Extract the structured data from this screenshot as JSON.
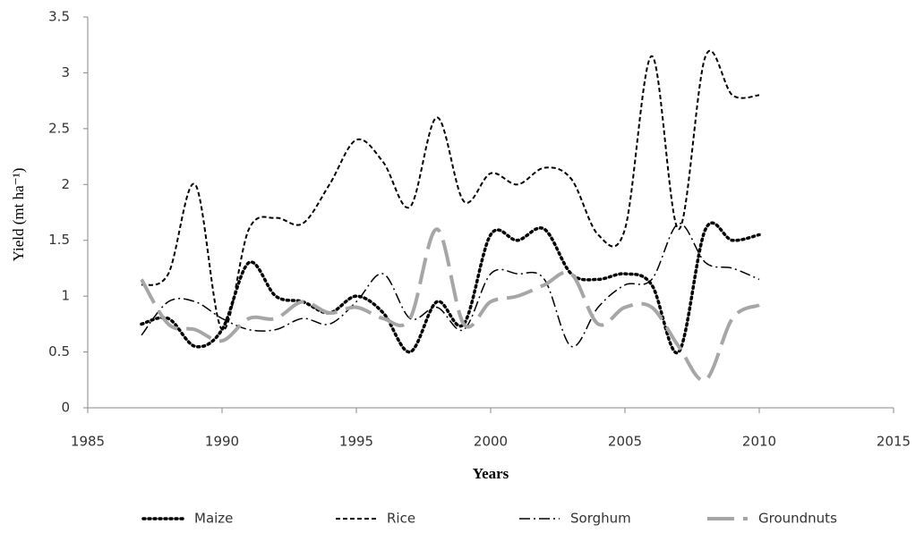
{
  "chart_data": {
    "type": "line",
    "x": [
      1987,
      1988,
      1989,
      1990,
      1991,
      1992,
      1993,
      1994,
      1995,
      1996,
      1997,
      1998,
      1999,
      2000,
      2001,
      2002,
      2003,
      2004,
      2005,
      2006,
      2007,
      2008,
      2009,
      2010
    ],
    "series": [
      {
        "name": "Maize",
        "color": "#000000",
        "style": "dotted",
        "values": [
          0.75,
          0.8,
          0.55,
          0.7,
          1.3,
          1.0,
          0.95,
          0.85,
          1.0,
          0.85,
          0.5,
          0.95,
          0.75,
          1.55,
          1.5,
          1.6,
          1.2,
          1.15,
          1.2,
          1.1,
          0.5,
          1.6,
          1.5,
          1.55
        ]
      },
      {
        "name": "Rice",
        "color": "#000000",
        "style": "dashed",
        "values": [
          1.1,
          1.2,
          2.0,
          0.7,
          1.6,
          1.7,
          1.65,
          2.0,
          2.4,
          2.2,
          1.8,
          2.6,
          1.85,
          2.1,
          2.0,
          2.15,
          2.05,
          1.55,
          1.6,
          3.15,
          1.6,
          3.15,
          2.8,
          2.8
        ]
      },
      {
        "name": "Sorghum",
        "color": "#000000",
        "style": "dash-dot",
        "values": [
          0.65,
          0.95,
          0.95,
          0.8,
          0.7,
          0.7,
          0.8,
          0.75,
          0.95,
          1.2,
          0.8,
          0.9,
          0.7,
          1.2,
          1.2,
          1.15,
          0.55,
          0.9,
          1.1,
          1.15,
          1.65,
          1.3,
          1.25,
          1.15
        ]
      },
      {
        "name": "Groundnuts",
        "color": "#a6a6a6",
        "style": "long-dash",
        "values": [
          1.15,
          0.75,
          0.7,
          0.6,
          0.8,
          0.8,
          0.95,
          0.85,
          0.9,
          0.8,
          0.8,
          1.6,
          0.75,
          0.95,
          1.0,
          1.1,
          1.2,
          0.75,
          0.9,
          0.9,
          0.55,
          0.25,
          0.8,
          0.92
        ]
      }
    ],
    "xlabel": "Years",
    "ylabel": "Yield (mt ha⁻¹)",
    "xlim": [
      1985,
      2015
    ],
    "xticks": [
      1985,
      1990,
      1995,
      2000,
      2005,
      2010,
      2015
    ],
    "ylim": [
      0,
      3.5
    ],
    "yticks": [
      0,
      0.5,
      1,
      1.5,
      2,
      2.5,
      3,
      3.5
    ],
    "grid": false,
    "legend": "bottom"
  }
}
